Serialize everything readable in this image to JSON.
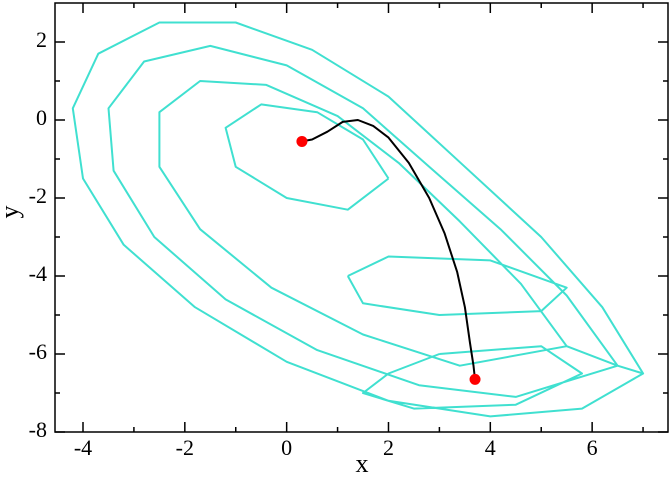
{
  "chart_data": {
    "type": "line",
    "xlabel": "x",
    "ylabel": "y",
    "xlim": [
      -4.55,
      7.49
    ],
    "ylim": [
      -8,
      3
    ],
    "xticks": [
      -4,
      -2,
      0,
      2,
      4,
      6
    ],
    "yticks": [
      -8,
      -6,
      -4,
      -2,
      0,
      2
    ],
    "xminorticks": [
      -3,
      -1,
      1,
      3,
      5,
      7
    ],
    "yminorticks": [
      -7,
      -5,
      -3,
      -1,
      1
    ],
    "series": [
      {
        "color": "#40e0d0",
        "mode": "lines",
        "x": [
          7.0,
          6.2,
          5,
          3.5,
          2,
          0.5,
          -1,
          -2.5,
          -3.7,
          -4.2,
          -4,
          -3.2,
          -1.8,
          0,
          2,
          4,
          5.8,
          7.0,
          6.5,
          5.5,
          4.2,
          2.8,
          1.5,
          0,
          -1.5,
          -2.8,
          -3.5,
          -3.4,
          -2.6,
          -1.2,
          0.6,
          2.6,
          4.5,
          6.5,
          5.5,
          4.6,
          3.4,
          2.2,
          1,
          -0.4,
          -1.7,
          -2.5,
          -2.5,
          -1.7,
          -0.3,
          1.5,
          3.4,
          5.5,
          null,
          2,
          1.5,
          0.6,
          -0.5,
          -1.2,
          -1,
          0,
          1.2,
          2,
          null,
          1.2,
          2,
          4,
          5.5,
          5,
          3,
          1.5,
          1.2,
          null,
          3,
          2,
          1.5,
          2.5,
          4.5,
          5.8,
          5,
          3
        ],
        "y": [
          -6.5,
          -4.8,
          -3,
          -1.2,
          0.6,
          1.8,
          2.5,
          2.5,
          1.7,
          0.3,
          -1.5,
          -3.2,
          -4.8,
          -6.2,
          -7.2,
          -7.6,
          -7.4,
          -6.5,
          -6.3,
          -4.5,
          -2.8,
          -1.2,
          0.3,
          1.4,
          1.9,
          1.5,
          0.3,
          -1.3,
          -3,
          -4.6,
          -5.9,
          -6.8,
          -7.1,
          -6.3,
          -5.8,
          -4.2,
          -2.6,
          -1.1,
          0.1,
          0.9,
          1,
          0.2,
          -1.2,
          -2.8,
          -4.3,
          -5.5,
          -6.3,
          -5.8,
          null,
          -1.5,
          -0.5,
          0.2,
          0.4,
          -0.2,
          -1.2,
          -2,
          -2.3,
          -1.5,
          null,
          -4,
          -3.5,
          -3.6,
          -4.3,
          -4.9,
          -5,
          -4.7,
          -4,
          null,
          -6,
          -6.5,
          -7,
          -7.4,
          -7.3,
          -6.5,
          -5.8,
          -6
        ]
      },
      {
        "color": "#000000",
        "mode": "lines",
        "x": [
          0.3,
          0.5,
          0.8,
          1.1,
          1.4,
          1.7,
          2.0,
          2.4,
          2.8,
          3.1,
          3.35,
          3.5,
          3.6,
          3.67,
          3.7
        ],
        "y": [
          -0.55,
          -0.5,
          -0.3,
          -0.05,
          0,
          -0.15,
          -0.45,
          -1.1,
          -2,
          -2.9,
          -3.9,
          -4.8,
          -5.7,
          -6.3,
          -6.65
        ]
      },
      {
        "color": "#ff0000",
        "mode": "markers",
        "x": [
          0.3,
          3.7
        ],
        "y": [
          -0.55,
          -6.65
        ]
      }
    ]
  }
}
